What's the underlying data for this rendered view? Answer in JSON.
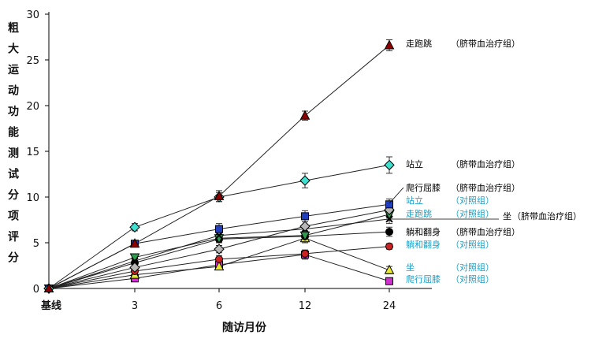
{
  "chart_data": {
    "type": "line",
    "title": "",
    "xlabel": "随访月份",
    "ylabel": "粗大运动功能测试分项评分",
    "categories": [
      "基线",
      "3",
      "6",
      "12",
      "24"
    ],
    "ylim": [
      0,
      30
    ],
    "yticks": [
      0,
      5,
      10,
      15,
      20,
      25,
      30
    ],
    "series": [
      {
        "name": "走跑跳",
        "group": "（脐带血治疗组）",
        "values": [
          0,
          4.9,
          10.1,
          18.9,
          26.6
        ],
        "errors": [
          0,
          0.3,
          0.6,
          0.5,
          0.6
        ],
        "marker": "triangle",
        "color": "#8b0000",
        "label_color": "#000000"
      },
      {
        "name": "站立",
        "group": "（脐带血治疗组）",
        "values": [
          0,
          6.7,
          10.0,
          11.8,
          13.5
        ],
        "errors": [
          0,
          0.4,
          0.5,
          0.8,
          0.9
        ],
        "marker": "diamond",
        "color": "#40e0d0",
        "label_color": "#000000"
      },
      {
        "name": "爬行屈膝",
        "group": "（脐带血治疗组）",
        "values": [
          0,
          4.9,
          6.5,
          7.9,
          9.2
        ],
        "errors": [
          0,
          0.3,
          0.6,
          0.6,
          0.6
        ],
        "marker": "square",
        "color": "#1f3fbf",
        "label_color": "#000000"
      },
      {
        "name": "站立",
        "group": "（对照组）",
        "values": [
          0,
          2.3,
          4.3,
          6.8,
          8.6
        ],
        "errors": [
          0,
          0.4,
          0.4,
          0.5,
          0.5
        ],
        "marker": "diamond",
        "color": "#b8b8b8",
        "label_color": "#1ba1c8"
      },
      {
        "name": "走跑跳",
        "group": "（对照组）",
        "values": [
          0,
          3.0,
          5.8,
          6.5,
          7.6
        ],
        "errors": [
          0,
          0.4,
          0.5,
          0.5,
          0.5
        ],
        "marker": "x",
        "color": "#000000",
        "label_color": "#1ba1c8"
      },
      {
        "name": "坐",
        "group": "（脐带血治疗组）",
        "values": [
          0,
          3.4,
          5.5,
          5.8,
          8.1
        ],
        "errors": [
          0,
          0.3,
          0.4,
          0.4,
          0.4
        ],
        "marker": "triangle-down",
        "color": "#2e9a4e",
        "label_color": "#000000"
      },
      {
        "name": "躺和翻身",
        "group": "（脐带血治疗组）",
        "values": [
          0,
          2.8,
          5.4,
          5.7,
          6.2
        ],
        "errors": [
          0,
          0.3,
          0.4,
          0.4,
          0.5
        ],
        "marker": "circle",
        "color": "#000000",
        "label_color": "#000000"
      },
      {
        "name": "躺和翻身",
        "group": "（对照组）",
        "values": [
          0,
          1.9,
          3.2,
          3.8,
          4.6
        ],
        "errors": [
          0,
          0.3,
          0.4,
          0.4,
          0.3
        ],
        "marker": "circle",
        "color": "#cc2222",
        "label_color": "#1ba1c8"
      },
      {
        "name": "坐",
        "group": "（对照组）",
        "values": [
          0,
          1.5,
          2.4,
          5.5,
          2.0
        ],
        "errors": [
          0,
          0.3,
          0.3,
          0.5,
          0.4
        ],
        "marker": "triangle",
        "color": "#e8e830",
        "label_color": "#1ba1c8"
      },
      {
        "name": "爬行屈膝",
        "group": "（对照组）",
        "values": [
          0,
          1.1,
          2.6,
          3.7,
          0.8
        ],
        "errors": [
          0,
          0.3,
          0.3,
          0.5,
          0.2
        ],
        "marker": "square",
        "color": "#d030d0",
        "label_color": "#1ba1c8"
      }
    ]
  }
}
